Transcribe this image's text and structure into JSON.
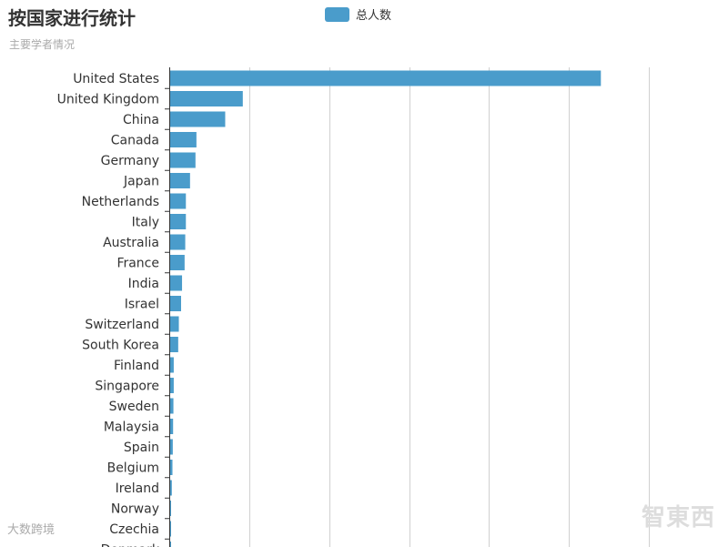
{
  "chart_data": {
    "type": "bar",
    "orientation": "horizontal",
    "title": "按国家进行统计",
    "subtitle": "主要学者情况",
    "xlabel": "",
    "ylabel": "",
    "legend_position": "top-center",
    "grid": true,
    "xlim": [
      0,
      1500
    ],
    "series": [
      {
        "name": "总人数",
        "color": "#4a9ccb",
        "values": [
          1350,
          230,
          175,
          85,
          82,
          65,
          52,
          52,
          50,
          48,
          40,
          37,
          30,
          28,
          14,
          14,
          13,
          12,
          11,
          10,
          8,
          5,
          5,
          4
        ]
      }
    ],
    "categories": [
      "United States",
      "United Kingdom",
      "China",
      "Canada",
      "Germany",
      "Japan",
      "Netherlands",
      "Italy",
      "Australia",
      "France",
      "India",
      "Israel",
      "Switzerland",
      "South Korea",
      "Finland",
      "Singapore",
      "Sweden",
      "Malaysia",
      "Spain",
      "Belgium",
      "Ireland",
      "Norway",
      "Czechia",
      "Denmark"
    ]
  },
  "watermarks": {
    "left": "大数跨境",
    "right": "智東西"
  },
  "colors": {
    "bar": "#4a9ccb",
    "grid": "#d0d0d0",
    "axis": "#333333"
  }
}
